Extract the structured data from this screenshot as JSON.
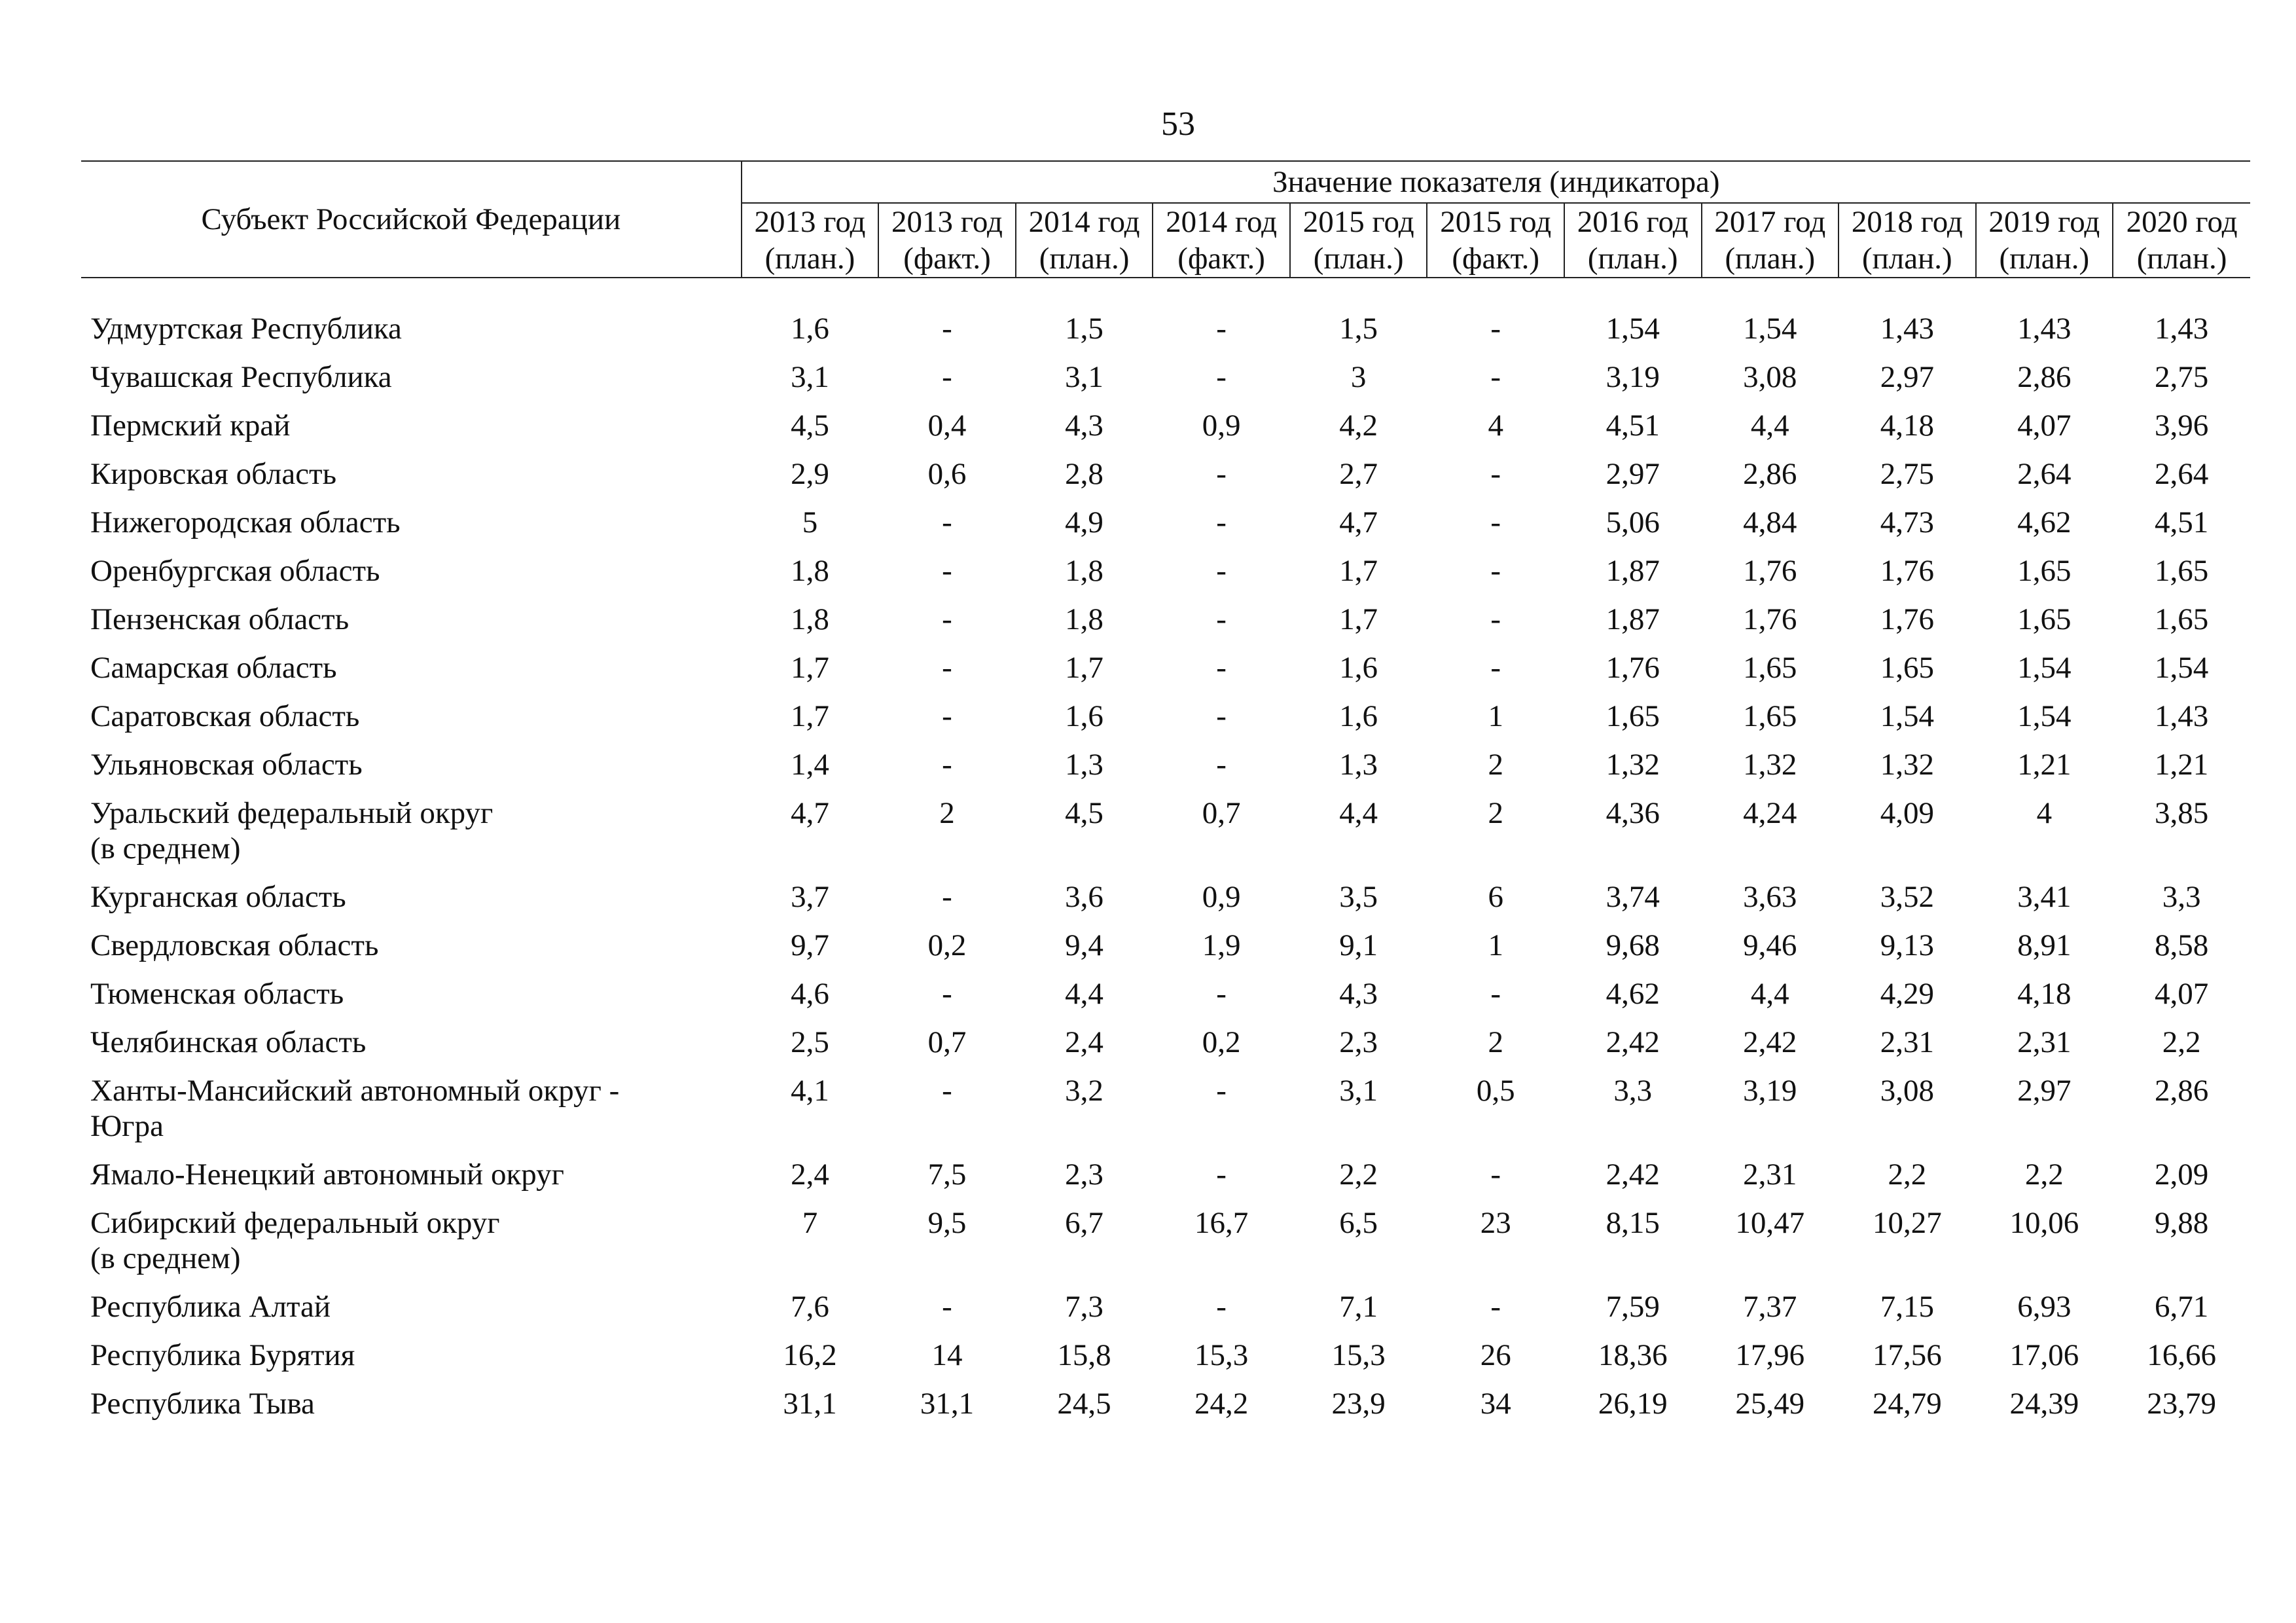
{
  "page_number": "53",
  "table": {
    "subject_header": "Субъект Российской Федерации",
    "group_header": "Значение показателя (индикатора)",
    "columns": [
      {
        "year": "2013 год",
        "kind": "(план.)"
      },
      {
        "year": "2013 год",
        "kind": "(факт.)"
      },
      {
        "year": "2014 год",
        "kind": "(план.)"
      },
      {
        "year": "2014 год",
        "kind": "(факт.)"
      },
      {
        "year": "2015 год",
        "kind": "(план.)"
      },
      {
        "year": "2015 год",
        "kind": "(факт.)"
      },
      {
        "year": "2016 год",
        "kind": "(план.)"
      },
      {
        "year": "2017 год",
        "kind": "(план.)"
      },
      {
        "year": "2018 год",
        "kind": "(план.)"
      },
      {
        "year": "2019 год",
        "kind": "(план.)"
      },
      {
        "year": "2020 год",
        "kind": "(план.)"
      }
    ],
    "rows": [
      {
        "name": "Удмуртская Республика",
        "values": [
          "1,6",
          "-",
          "1,5",
          "-",
          "1,5",
          "-",
          "1,54",
          "1,54",
          "1,43",
          "1,43",
          "1,43"
        ]
      },
      {
        "name": "Чувашская Республика",
        "values": [
          "3,1",
          "-",
          "3,1",
          "-",
          "3",
          "-",
          "3,19",
          "3,08",
          "2,97",
          "2,86",
          "2,75"
        ]
      },
      {
        "name": "Пермский край",
        "values": [
          "4,5",
          "0,4",
          "4,3",
          "0,9",
          "4,2",
          "4",
          "4,51",
          "4,4",
          "4,18",
          "4,07",
          "3,96"
        ]
      },
      {
        "name": "Кировская область",
        "values": [
          "2,9",
          "0,6",
          "2,8",
          "-",
          "2,7",
          "-",
          "2,97",
          "2,86",
          "2,75",
          "2,64",
          "2,64"
        ]
      },
      {
        "name": "Нижегородская область",
        "values": [
          "5",
          "-",
          "4,9",
          "-",
          "4,7",
          "-",
          "5,06",
          "4,84",
          "4,73",
          "4,62",
          "4,51"
        ]
      },
      {
        "name": "Оренбургская область",
        "values": [
          "1,8",
          "-",
          "1,8",
          "-",
          "1,7",
          "-",
          "1,87",
          "1,76",
          "1,76",
          "1,65",
          "1,65"
        ]
      },
      {
        "name": "Пензенская область",
        "values": [
          "1,8",
          "-",
          "1,8",
          "-",
          "1,7",
          "-",
          "1,87",
          "1,76",
          "1,76",
          "1,65",
          "1,65"
        ]
      },
      {
        "name": "Самарская область",
        "values": [
          "1,7",
          "-",
          "1,7",
          "-",
          "1,6",
          "-",
          "1,76",
          "1,65",
          "1,65",
          "1,54",
          "1,54"
        ]
      },
      {
        "name": "Саратовская область",
        "values": [
          "1,7",
          "-",
          "1,6",
          "-",
          "1,6",
          "1",
          "1,65",
          "1,65",
          "1,54",
          "1,54",
          "1,43"
        ]
      },
      {
        "name": "Ульяновская область",
        "values": [
          "1,4",
          "-",
          "1,3",
          "-",
          "1,3",
          "2",
          "1,32",
          "1,32",
          "1,32",
          "1,21",
          "1,21"
        ]
      },
      {
        "name": "Уральский федеральный округ\n(в среднем)",
        "values": [
          "4,7",
          "2",
          "4,5",
          "0,7",
          "4,4",
          "2",
          "4,36",
          "4,24",
          "4,09",
          "4",
          "3,85"
        ]
      },
      {
        "name": "Курганская область",
        "values": [
          "3,7",
          "-",
          "3,6",
          "0,9",
          "3,5",
          "6",
          "3,74",
          "3,63",
          "3,52",
          "3,41",
          "3,3"
        ]
      },
      {
        "name": "Свердловская область",
        "values": [
          "9,7",
          "0,2",
          "9,4",
          "1,9",
          "9,1",
          "1",
          "9,68",
          "9,46",
          "9,13",
          "8,91",
          "8,58"
        ]
      },
      {
        "name": "Тюменская область",
        "values": [
          "4,6",
          "-",
          "4,4",
          "-",
          "4,3",
          "-",
          "4,62",
          "4,4",
          "4,29",
          "4,18",
          "4,07"
        ]
      },
      {
        "name": "Челябинская область",
        "values": [
          "2,5",
          "0,7",
          "2,4",
          "0,2",
          "2,3",
          "2",
          "2,42",
          "2,42",
          "2,31",
          "2,31",
          "2,2"
        ]
      },
      {
        "name": "Ханты-Мансийский автономный округ -\nЮгра",
        "values": [
          "4,1",
          "-",
          "3,2",
          "-",
          "3,1",
          "0,5",
          "3,3",
          "3,19",
          "3,08",
          "2,97",
          "2,86"
        ]
      },
      {
        "name": "Ямало-Ненецкий автономный округ",
        "values": [
          "2,4",
          "7,5",
          "2,3",
          "-",
          "2,2",
          "-",
          "2,42",
          "2,31",
          "2,2",
          "2,2",
          "2,09"
        ]
      },
      {
        "name": "Сибирский федеральный округ\n(в среднем)",
        "values": [
          "7",
          "9,5",
          "6,7",
          "16,7",
          "6,5",
          "23",
          "8,15",
          "10,47",
          "10,27",
          "10,06",
          "9,88"
        ]
      },
      {
        "name": "Республика Алтай",
        "values": [
          "7,6",
          "-",
          "7,3",
          "-",
          "7,1",
          "-",
          "7,59",
          "7,37",
          "7,15",
          "6,93",
          "6,71"
        ]
      },
      {
        "name": "Республика Бурятия",
        "values": [
          "16,2",
          "14",
          "15,8",
          "15,3",
          "15,3",
          "26",
          "18,36",
          "17,96",
          "17,56",
          "17,06",
          "16,66"
        ]
      },
      {
        "name": "Республика Тыва",
        "values": [
          "31,1",
          "31,1",
          "24,5",
          "24,2",
          "23,9",
          "34",
          "26,19",
          "25,49",
          "24,79",
          "24,39",
          "23,79"
        ]
      }
    ]
  }
}
